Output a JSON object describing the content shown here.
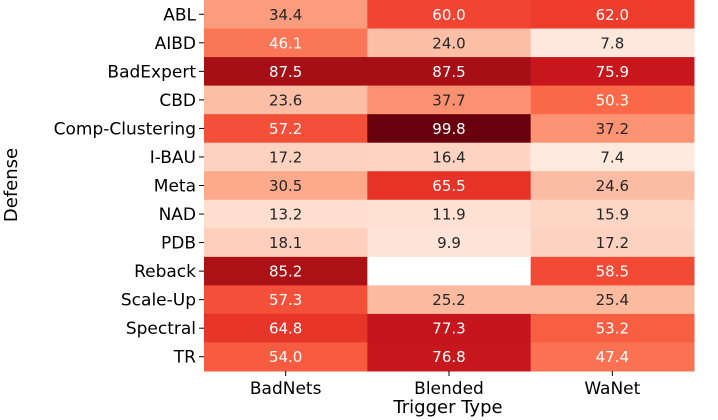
{
  "chart_data": {
    "type": "heatmap",
    "title": "",
    "xlabel": "Trigger Type",
    "ylabel": "Defense",
    "colormap": "Reds",
    "value_range": [
      0,
      100
    ],
    "x_categories": [
      "BadNets",
      "Blended",
      "WaNet"
    ],
    "y_categories": [
      "ABL",
      "AIBD",
      "BadExpert",
      "CBD",
      "Comp-Clustering",
      "I-BAU",
      "Meta",
      "NAD",
      "PDB",
      "Reback",
      "Scale-Up",
      "Spectral",
      "TR"
    ],
    "values": [
      [
        34.4,
        60.0,
        62.0
      ],
      [
        46.1,
        24.0,
        7.8
      ],
      [
        87.5,
        87.5,
        75.9
      ],
      [
        23.6,
        37.7,
        50.3
      ],
      [
        57.2,
        99.8,
        37.2
      ],
      [
        17.2,
        16.4,
        7.4
      ],
      [
        30.5,
        65.5,
        24.6
      ],
      [
        13.2,
        11.9,
        15.9
      ],
      [
        18.1,
        9.9,
        17.2
      ],
      [
        85.2,
        null,
        58.5
      ],
      [
        57.3,
        25.2,
        25.4
      ],
      [
        64.8,
        77.3,
        53.2
      ],
      [
        54.0,
        76.8,
        47.4
      ]
    ],
    "labels": [
      [
        "34.4",
        "60.0",
        "62.0"
      ],
      [
        "46.1",
        "24.0",
        "7.8"
      ],
      [
        "87.5",
        "87.5",
        "75.9"
      ],
      [
        "23.6",
        "37.7",
        "50.3"
      ],
      [
        "57.2",
        "99.8",
        "37.2"
      ],
      [
        "17.2",
        "16.4",
        "7.4"
      ],
      [
        "30.5",
        "65.5",
        "24.6"
      ],
      [
        "13.2",
        "11.9",
        "15.9"
      ],
      [
        "18.1",
        "9.9",
        "17.2"
      ],
      [
        "85.2",
        "",
        "58.5"
      ],
      [
        "57.3",
        "25.2",
        "25.4"
      ],
      [
        "64.8",
        "77.3",
        "53.2"
      ],
      [
        "54.0",
        "76.8",
        "47.4"
      ]
    ]
  }
}
